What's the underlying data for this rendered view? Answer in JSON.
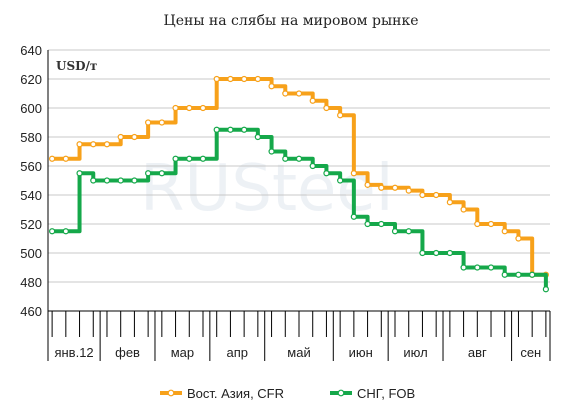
{
  "chart_data": {
    "type": "line",
    "title": "Цены на слябы на мировом рынке",
    "unit_label": "USD/т",
    "ylim": [
      460,
      640
    ],
    "yticks": [
      460,
      480,
      500,
      520,
      540,
      560,
      580,
      600,
      620,
      640
    ],
    "grid": "horizontal",
    "legend_position": "bottom",
    "months": [
      {
        "label": "янв.12",
        "start": 0,
        "end": 4
      },
      {
        "label": "фев",
        "start": 4,
        "end": 8
      },
      {
        "label": "мар",
        "start": 8,
        "end": 12
      },
      {
        "label": "апр",
        "start": 12,
        "end": 16
      },
      {
        "label": "май",
        "start": 16,
        "end": 21
      },
      {
        "label": "июн",
        "start": 21,
        "end": 25
      },
      {
        "label": "июл",
        "start": 25,
        "end": 29
      },
      {
        "label": "авг",
        "start": 29,
        "end": 34
      },
      {
        "label": "сен",
        "start": 34,
        "end": 37
      }
    ],
    "num_points": 37,
    "series": [
      {
        "name": "Вост. Азия, CFR",
        "color": "#f7a11a",
        "values": [
          565,
          565,
          575,
          575,
          575,
          580,
          580,
          590,
          590,
          600,
          600,
          600,
          620,
          620,
          620,
          620,
          615,
          610,
          610,
          605,
          600,
          595,
          555,
          547,
          545,
          545,
          543,
          540,
          540,
          535,
          530,
          520,
          520,
          515,
          510,
          485,
          485
        ]
      },
      {
        "name": "СНГ, FOB",
        "color": "#15a84a",
        "values": [
          515,
          515,
          555,
          550,
          550,
          550,
          550,
          555,
          555,
          565,
          565,
          565,
          585,
          585,
          585,
          580,
          570,
          565,
          565,
          560,
          555,
          550,
          525,
          520,
          520,
          515,
          515,
          500,
          500,
          500,
          490,
          490,
          490,
          485,
          485,
          485,
          475
        ]
      }
    ]
  },
  "watermark_text": "RUSteel"
}
